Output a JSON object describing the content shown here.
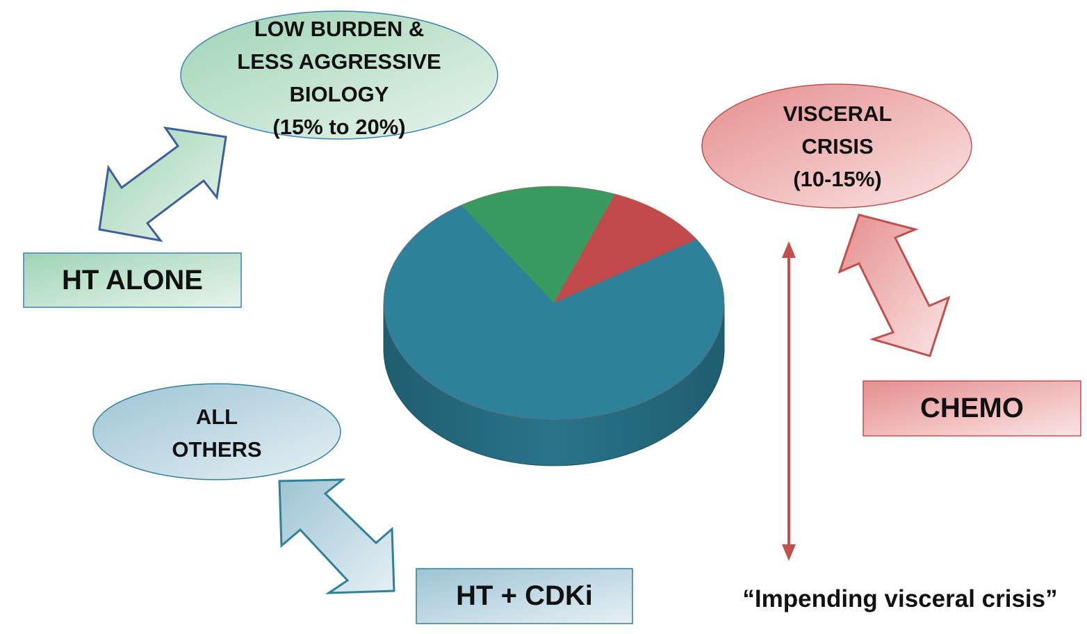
{
  "colors": {
    "green": "#3a9a5f",
    "red": "#c14b4b",
    "teal": "#2f8199",
    "green_border": "#3d7fb8",
    "red_border": "#c0504d",
    "teal_border": "#2f8199"
  },
  "ovals": {
    "low_burden": [
      "LOW BURDEN &",
      "LESS AGGRESSIVE",
      "BIOLOGY",
      "(15% to 20%)"
    ],
    "visceral": [
      "VISCERAL",
      "CRISIS",
      "(10-15%)"
    ],
    "others": [
      "ALL",
      "OTHERS"
    ]
  },
  "boxes": {
    "ht_alone": "HT ALONE",
    "chemo": "CHEMO",
    "ht_cdki": "HT + CDKi"
  },
  "annotation": "“Impending visceral crisis”",
  "chart_data": {
    "type": "pie",
    "style": "3d",
    "slices": [
      {
        "category": "low_burden",
        "value": 15,
        "color": "#3a9a5f"
      },
      {
        "category": "visceral_crisis",
        "value": 10,
        "color": "#c14b4b"
      },
      {
        "category": "all_others",
        "value": 75,
        "color": "#2f8199"
      }
    ]
  }
}
